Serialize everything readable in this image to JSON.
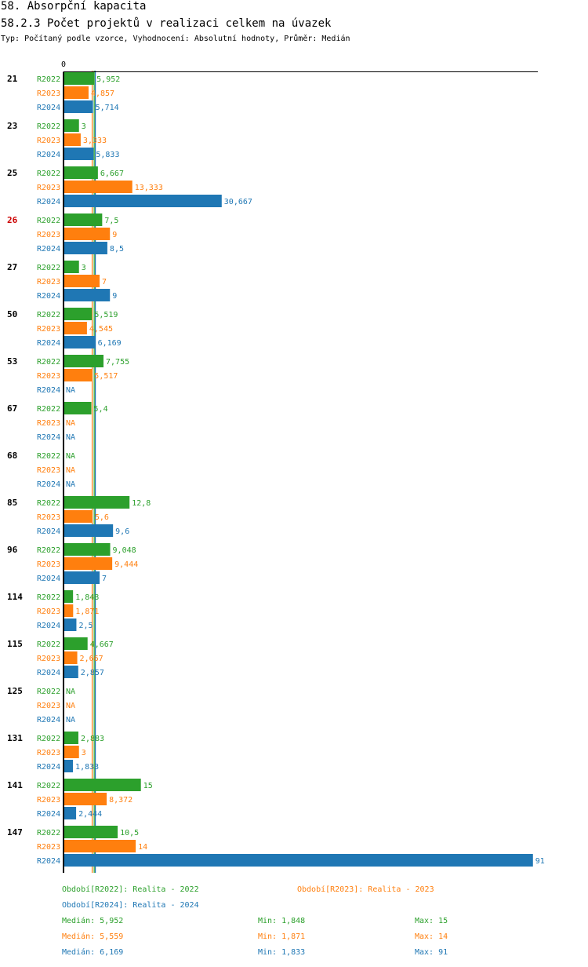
{
  "header": {
    "title": "58. Absorpční kapacita",
    "subtitle": "58.2.3 Počet projektů v realizaci celkem na úvazek",
    "meta": "Typ: Počítaný podle vzorce, Vyhodnocení: Absolutní hodnoty, Průměr: Medián"
  },
  "colors": {
    "R2022": "#2ca02c",
    "R2023": "#ff7f0e",
    "R2024": "#1f77b4",
    "highlight": "#cc0000",
    "text": "#000000"
  },
  "chart_data": {
    "type": "bar",
    "orientation": "horizontal",
    "x_tick_labels": [
      "0"
    ],
    "xlim": [
      0,
      91
    ],
    "na_label": "NA",
    "highlight_category": "26",
    "categories": [
      "21",
      "23",
      "25",
      "26",
      "27",
      "50",
      "53",
      "67",
      "68",
      "85",
      "96",
      "114",
      "115",
      "125",
      "131",
      "141",
      "147"
    ],
    "series": [
      {
        "name": "R2022",
        "values": [
          5.952,
          3,
          6.667,
          7.5,
          3,
          5.519,
          7.755,
          5.4,
          null,
          12.8,
          9.048,
          1.848,
          4.667,
          null,
          2.883,
          15,
          10.5
        ],
        "labels": [
          "5,952",
          "3",
          "6,667",
          "7,5",
          "3",
          "5,519",
          "7,755",
          "5,4",
          "NA",
          "12,8",
          "9,048",
          "1,848",
          "4,667",
          "NA",
          "2,883",
          "15",
          "10,5"
        ]
      },
      {
        "name": "R2023",
        "values": [
          4.857,
          3.333,
          13.333,
          9,
          7,
          4.545,
          5.517,
          null,
          null,
          5.6,
          9.444,
          1.871,
          2.667,
          null,
          3,
          8.372,
          14
        ],
        "labels": [
          "4,857",
          "3,333",
          "13,333",
          "9",
          "7",
          "4,545",
          "5,517",
          "NA",
          "NA",
          "5,6",
          "9,444",
          "1,871",
          "2,667",
          "NA",
          "3",
          "8,372",
          "14"
        ]
      },
      {
        "name": "R2024",
        "values": [
          5.714,
          5.833,
          30.667,
          8.5,
          9,
          6.169,
          null,
          null,
          null,
          9.6,
          7,
          2.5,
          2.857,
          null,
          1.833,
          2.444,
          91
        ],
        "labels": [
          "5,714",
          "5,833",
          "30,667",
          "8,5",
          "9",
          "6,169",
          "NA",
          "NA",
          "NA",
          "9,6",
          "7",
          "2,5",
          "2,857",
          "NA",
          "1,833",
          "2,444",
          "91"
        ]
      }
    ],
    "median_lines": {
      "R2022": 5.952,
      "R2023": 5.559,
      "R2024": 6.169
    }
  },
  "legend": {
    "entries": [
      "Období[R2022]: Realita - 2022",
      "Období[R2023]: Realita - 2023",
      "Období[R2024]: Realita - 2024"
    ],
    "stats": [
      {
        "median": "Medián: 5,952",
        "min": "Min: 1,848",
        "max": "Max: 15"
      },
      {
        "median": "Medián: 5,559",
        "min": "Min: 1,871",
        "max": "Max: 14"
      },
      {
        "median": "Medián: 6,169",
        "min": "Min: 1,833",
        "max": "Max: 91"
      }
    ]
  }
}
